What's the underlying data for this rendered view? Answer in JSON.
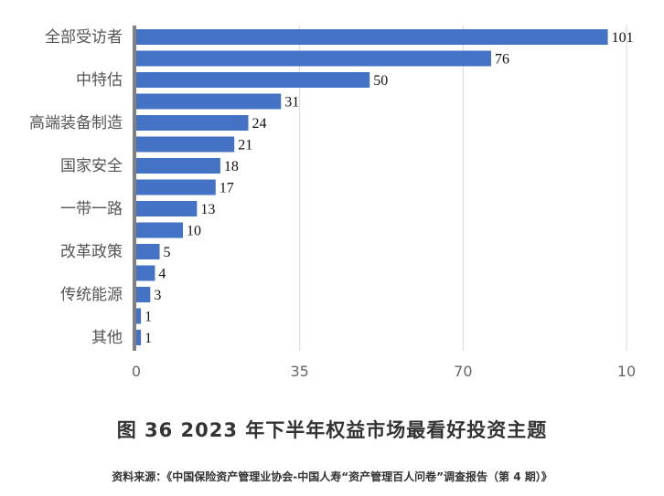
{
  "chart_data": {
    "type": "bar",
    "orientation": "horizontal",
    "values": [
      101,
      76,
      50,
      31,
      24,
      21,
      18,
      17,
      13,
      10,
      5,
      4,
      3,
      1,
      1
    ],
    "category_labels": [
      {
        "row": 0,
        "label": "全部受访者"
      },
      {
        "row": 2,
        "label": "中特估"
      },
      {
        "row": 4,
        "label": "高端装备制造"
      },
      {
        "row": 6,
        "label": "国家安全"
      },
      {
        "row": 8,
        "label": "一带一路"
      },
      {
        "row": 10,
        "label": "改革政策"
      },
      {
        "row": 12,
        "label": "传统能源"
      },
      {
        "row": 14,
        "label": "其他"
      }
    ],
    "x_ticks": [
      "0",
      "35",
      "70",
      "10"
    ],
    "xlim": [
      0,
      105
    ],
    "bar_color": "#4472C4",
    "axis_color": "#808080",
    "grid": "vertical",
    "title": "图 36 2023 年下半年权益市场最看好投资主题"
  },
  "caption": "图 36 2023 年下半年权益市场最看好投资主题",
  "source": "资料来源：《中国保险资产管理业协会-中国人寿“资产管理百人问卷”调查报告（第 4 期）》"
}
